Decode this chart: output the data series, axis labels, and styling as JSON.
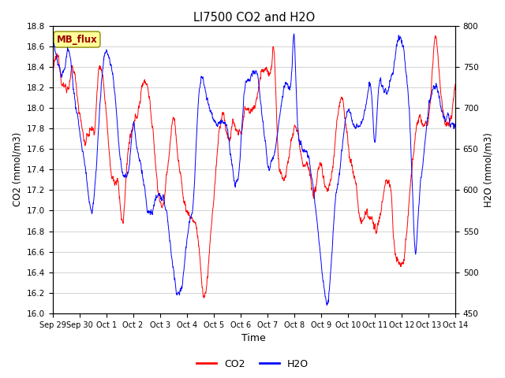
{
  "title": "LI7500 CO2 and H2O",
  "xlabel": "Time",
  "ylabel_left": "CO2 (mmol/m3)",
  "ylabel_right": "H2O (mmol/m3)",
  "co2_color": "#FF0000",
  "h2o_color": "#0000FF",
  "co2_ylim": [
    16.0,
    18.8
  ],
  "h2o_ylim": [
    450,
    800
  ],
  "co2_yticks": [
    16.0,
    16.2,
    16.4,
    16.6,
    16.8,
    17.0,
    17.2,
    17.4,
    17.6,
    17.8,
    18.0,
    18.2,
    18.4,
    18.6,
    18.8
  ],
  "h2o_yticks": [
    450,
    500,
    550,
    600,
    650,
    700,
    750,
    800
  ],
  "xtick_labels": [
    "Sep 29",
    "Sep 30",
    "Oct 1",
    "Oct 2",
    "Oct 3",
    "Oct 4",
    "Oct 5",
    "Oct 6",
    "Oct 7",
    "Oct 8",
    "Oct 9",
    "Oct 10",
    "Oct 11",
    "Oct 12",
    "Oct 13",
    "Oct 14"
  ],
  "n_points": 2000,
  "legend_label_co2": "CO2",
  "legend_label_h2o": "H2O",
  "legend_box_color": "#FFFF99",
  "legend_box_text": "MB_flux",
  "legend_box_text_color": "#990000",
  "background_color": "#ffffff",
  "grid_color": "#cccccc",
  "figwidth": 6.4,
  "figheight": 4.8,
  "dpi": 100
}
